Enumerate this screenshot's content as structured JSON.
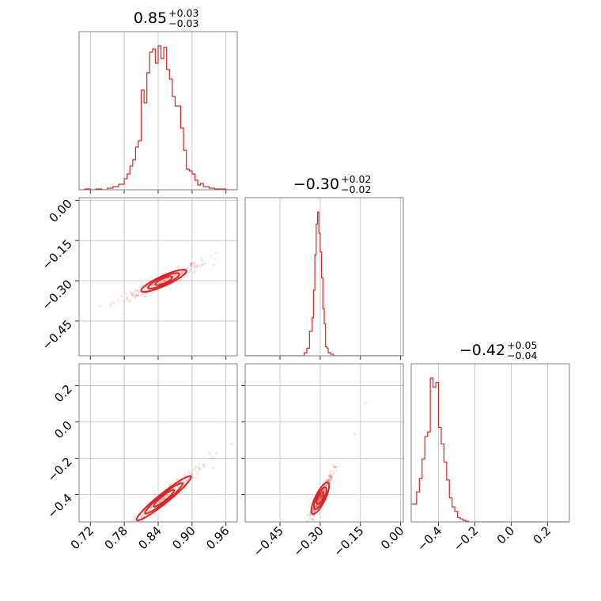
{
  "chart_data": {
    "type": "corner",
    "color": "#d62728",
    "grid": true,
    "parameters": [
      {
        "value": "0.85",
        "plus": "+0.03",
        "minus": "−0.03",
        "range": [
          0.7,
          0.98
        ],
        "ticks": [
          0.72,
          0.78,
          0.84,
          0.9,
          0.96
        ],
        "tick_labels": [
          "0.72",
          "0.78",
          "0.84",
          "0.90",
          "0.96"
        ]
      },
      {
        "value": "−0.30",
        "plus": "+0.02",
        "minus": "−0.02",
        "range": [
          -0.58,
          0.01
        ],
        "ticks": [
          -0.45,
          -0.3,
          -0.15,
          0.0
        ],
        "tick_labels": [
          "−0.45",
          "−0.30",
          "−0.15",
          "0.00"
        ]
      },
      {
        "value": "−0.42",
        "plus": "+0.05",
        "minus": "−0.04",
        "range": [
          -0.55,
          0.32
        ],
        "ticks": [
          -0.4,
          -0.2,
          0.0,
          0.2
        ],
        "tick_labels": [
          "−0.4",
          "−0.2",
          "0.0",
          "0.2"
        ]
      }
    ],
    "histograms": [
      {
        "param": 0,
        "bin_edges": [
          0.7,
          0.71,
          0.72,
          0.73,
          0.74,
          0.75,
          0.76,
          0.77,
          0.78,
          0.785,
          0.79,
          0.795,
          0.8,
          0.805,
          0.81,
          0.815,
          0.82,
          0.825,
          0.83,
          0.835,
          0.84,
          0.845,
          0.85,
          0.855,
          0.86,
          0.865,
          0.87,
          0.875,
          0.88,
          0.885,
          0.89,
          0.895,
          0.9,
          0.905,
          0.91,
          0.915,
          0.92,
          0.925,
          0.93,
          0.94,
          0.95,
          0.96,
          0.98
        ],
        "counts": [
          0.0,
          0.005,
          0.0,
          0.005,
          0.0,
          0.01,
          0.02,
          0.035,
          0.07,
          0.1,
          0.15,
          0.19,
          0.27,
          0.31,
          0.63,
          0.55,
          0.74,
          0.87,
          0.89,
          0.8,
          0.91,
          0.83,
          0.9,
          0.76,
          0.7,
          0.59,
          0.53,
          0.53,
          0.39,
          0.25,
          0.13,
          0.12,
          0.1,
          0.06,
          0.03,
          0.04,
          0.02,
          0.02,
          0.01,
          0.005,
          0.005,
          0.0
        ]
      },
      {
        "param": 1,
        "bin_edges": [
          -0.58,
          -0.36,
          -0.35,
          -0.34,
          -0.33,
          -0.325,
          -0.32,
          -0.315,
          -0.31,
          -0.305,
          -0.3,
          -0.295,
          -0.29,
          -0.285,
          -0.28,
          -0.275,
          -0.27,
          -0.26,
          -0.25,
          0.01
        ],
        "counts": [
          0.0,
          0.02,
          0.05,
          0.16,
          0.25,
          0.43,
          0.66,
          0.86,
          0.94,
          0.8,
          0.68,
          0.51,
          0.31,
          0.21,
          0.06,
          0.05,
          0.02,
          0.01,
          0.0
        ]
      },
      {
        "param": 2,
        "bin_edges": [
          -0.55,
          -0.535,
          -0.52,
          -0.505,
          -0.49,
          -0.475,
          -0.46,
          -0.445,
          -0.43,
          -0.415,
          -0.4,
          -0.385,
          -0.37,
          -0.355,
          -0.34,
          -0.325,
          -0.31,
          -0.295,
          -0.28,
          -0.265,
          -0.25,
          -0.235,
          0.32
        ],
        "counts": [
          0.12,
          0.12,
          0.2,
          0.29,
          0.42,
          0.57,
          0.6,
          0.96,
          0.9,
          0.93,
          0.63,
          0.52,
          0.4,
          0.28,
          0.16,
          0.1,
          0.07,
          0.03,
          0.02,
          0.01,
          0.005,
          0.0
        ]
      }
    ],
    "joint_trends": [
      {
        "x": 0,
        "y": 1,
        "center": [
          0.85,
          -0.3
        ],
        "slope": 0.95,
        "spread": [
          0.025,
          0.012
        ]
      },
      {
        "x": 0,
        "y": 2,
        "center": [
          0.85,
          -0.42
        ],
        "slope": 2.5,
        "spread": [
          0.03,
          0.02
        ]
      },
      {
        "x": 1,
        "y": 2,
        "center": [
          -0.3,
          -0.42
        ],
        "slope": 3.0,
        "spread": [
          0.018,
          0.02
        ]
      }
    ]
  }
}
